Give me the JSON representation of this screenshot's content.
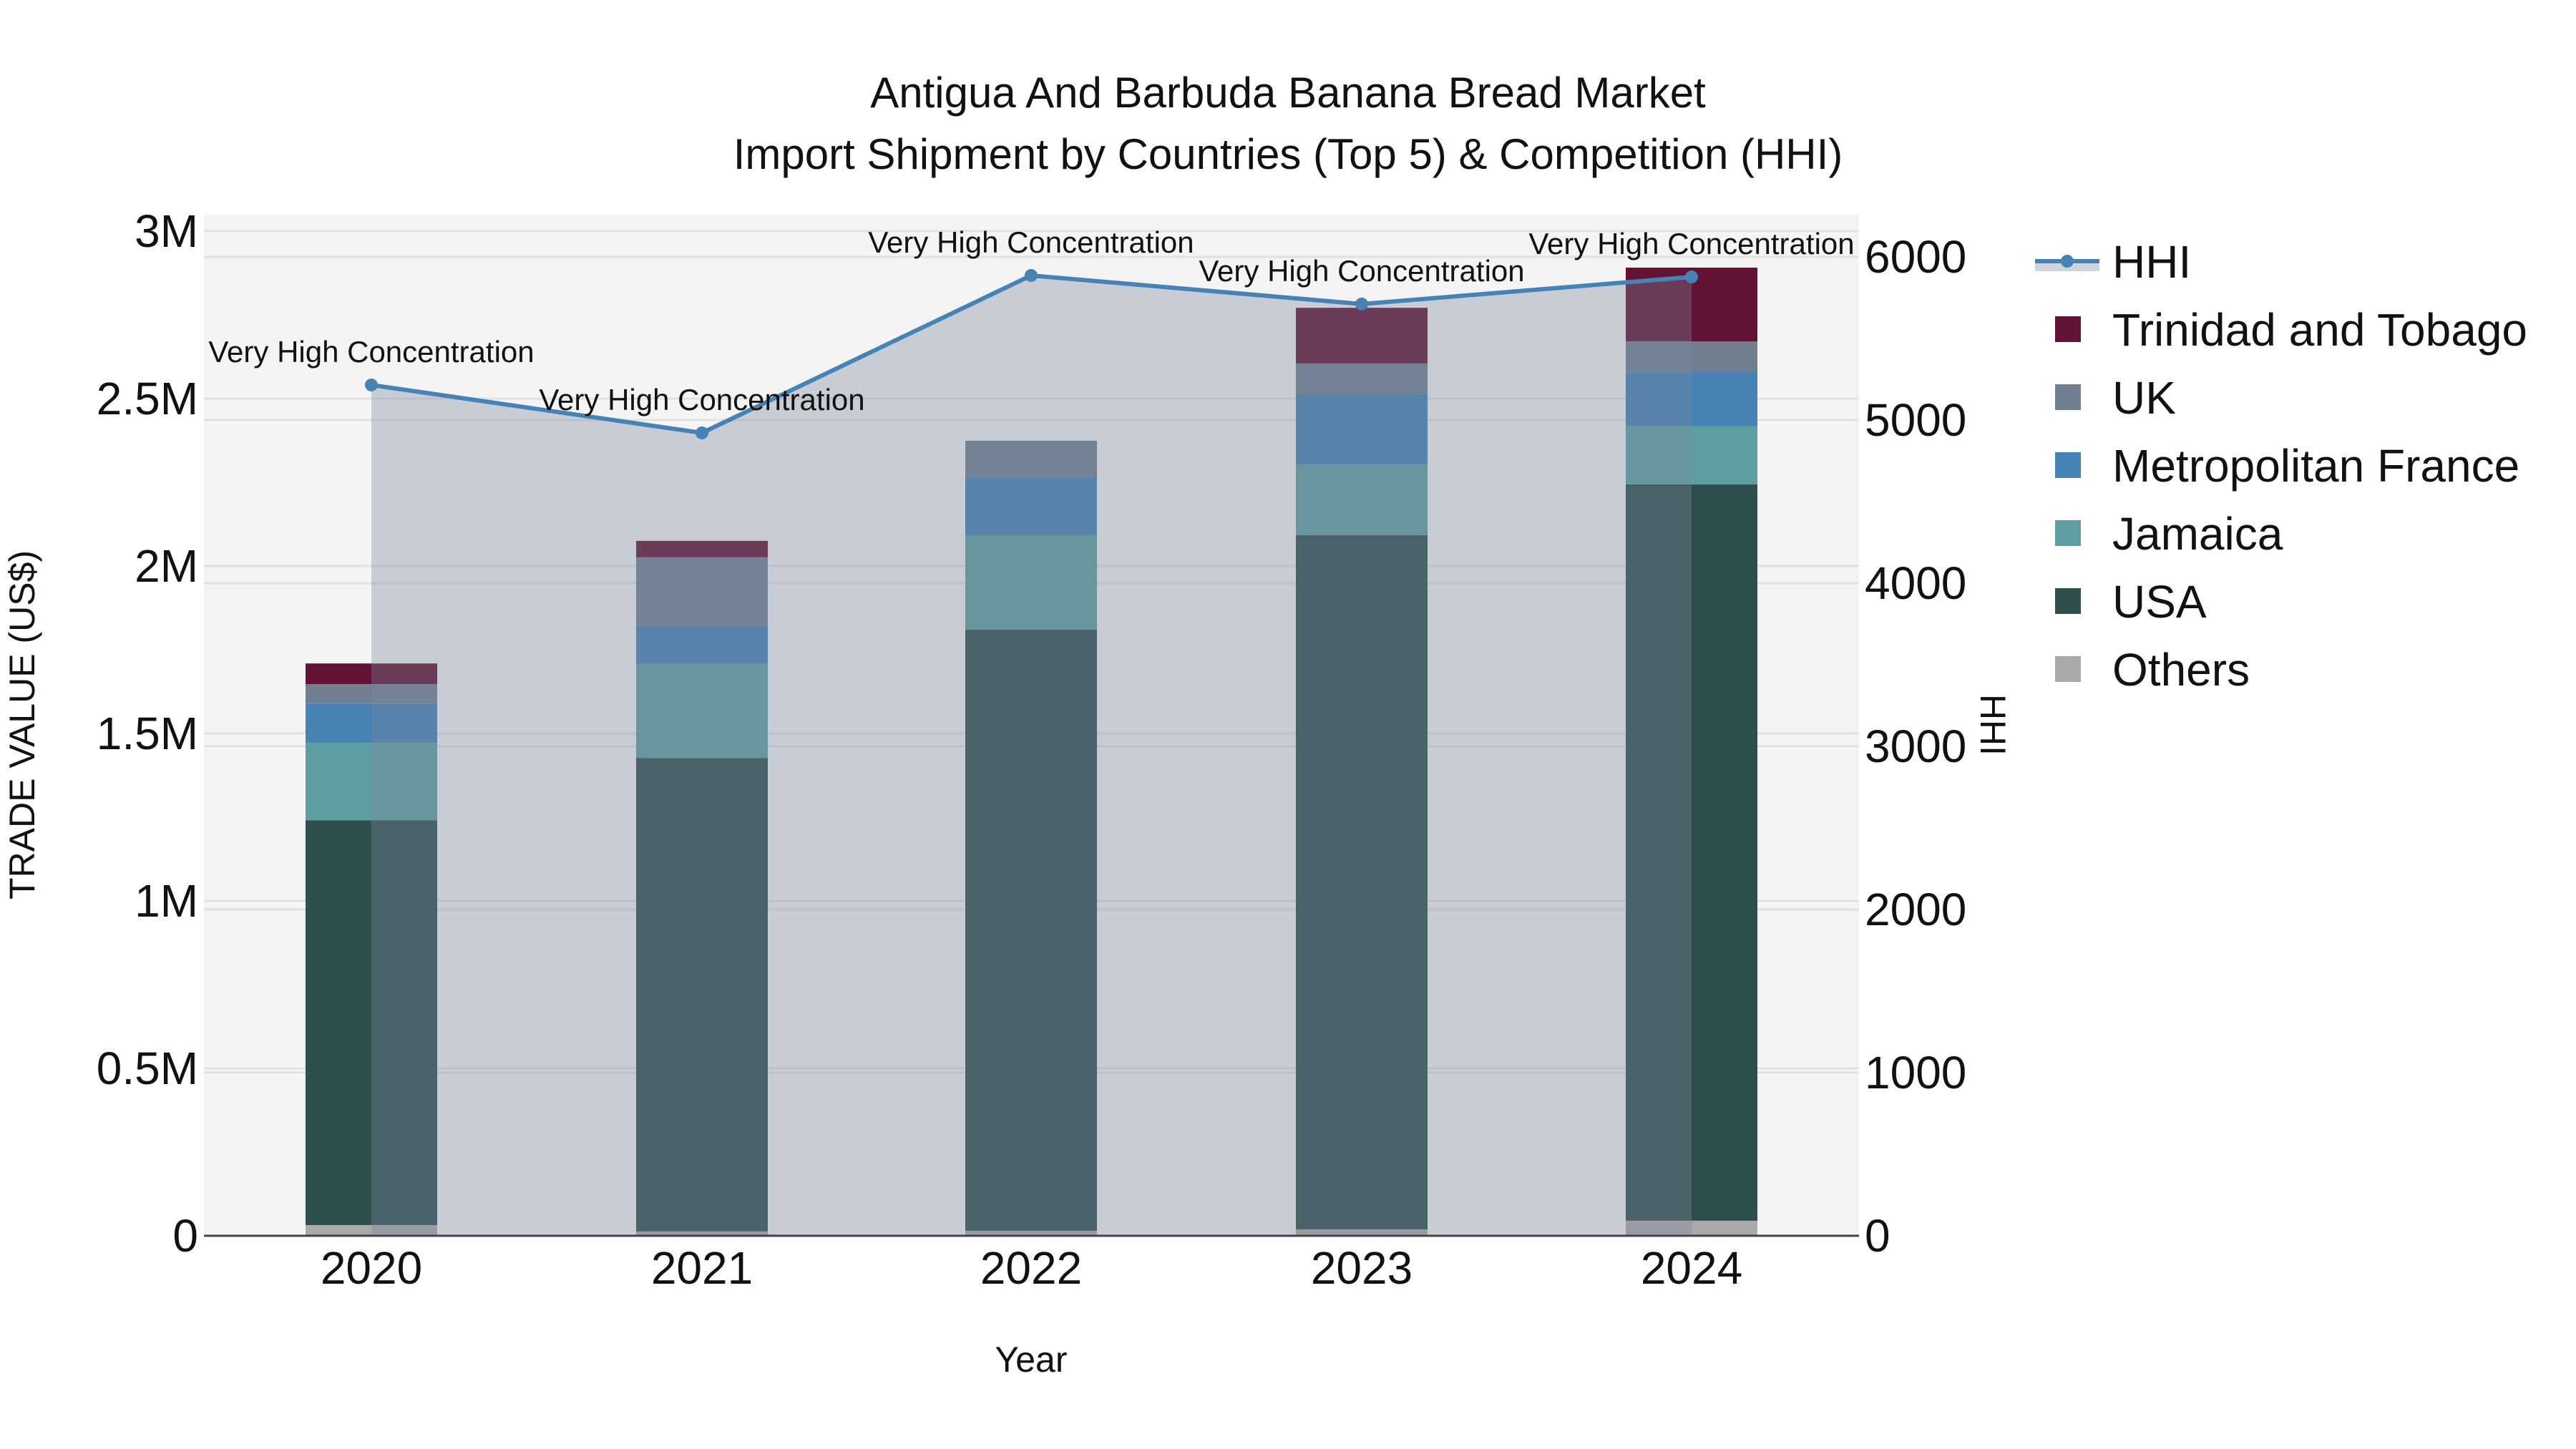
{
  "chart_data": {
    "type": "bar",
    "subtype": "stacked bar with line/area overlay (dual y-axis)",
    "title": "Antigua And Barbuda Banana Bread Market",
    "subtitle": "Import Shipment by Countries (Top 5) & Competition (HHI)",
    "xlabel": "Year",
    "ylabel": "TRADE VALUE (US$)",
    "y2label": "HHI",
    "categories": [
      "2020",
      "2021",
      "2022",
      "2023",
      "2024"
    ],
    "ylim": [
      0,
      3000000
    ],
    "y2lim": [
      0,
      6000
    ],
    "yticks": [
      {
        "value": 0,
        "label": "0"
      },
      {
        "value": 500000,
        "label": "0.5M"
      },
      {
        "value": 1000000,
        "label": "1M"
      },
      {
        "value": 1500000,
        "label": "1.5M"
      },
      {
        "value": 2000000,
        "label": "2M"
      },
      {
        "value": 2500000,
        "label": "2.5M"
      },
      {
        "value": 3000000,
        "label": "3M"
      }
    ],
    "y2ticks": [
      {
        "value": 0,
        "label": "0"
      },
      {
        "value": 1000,
        "label": "1000"
      },
      {
        "value": 2000,
        "label": "2000"
      },
      {
        "value": 3000,
        "label": "3000"
      },
      {
        "value": 4000,
        "label": "4000"
      },
      {
        "value": 5000,
        "label": "5000"
      },
      {
        "value": 6000,
        "label": "6000"
      }
    ],
    "grid": true,
    "legend_position": "right",
    "series": [
      {
        "name": "Others",
        "color": "#a9a9a9",
        "values": [
          32000,
          13000,
          15000,
          19000,
          45000
        ]
      },
      {
        "name": "USA",
        "color": "#2f4f4f",
        "values": [
          1209000,
          1414000,
          1795000,
          2073000,
          2199000
        ]
      },
      {
        "name": "Jamaica",
        "color": "#5f9ea0",
        "values": [
          231000,
          281000,
          282000,
          211000,
          173000
        ]
      },
      {
        "name": "Metropolitan France",
        "color": "#4682b4",
        "values": [
          116000,
          113000,
          173000,
          210000,
          162000
        ]
      },
      {
        "name": "UK",
        "color": "#708090",
        "values": [
          59000,
          205000,
          109000,
          92000,
          92000
        ]
      },
      {
        "name": "Trinidad and Tobago",
        "color": "#611235",
        "values": [
          62000,
          49000,
          0,
          166000,
          220000
        ]
      }
    ],
    "line_series": {
      "name": "HHI",
      "axis": "y2",
      "color": "#4682b4",
      "fill_color": "rgba(122,136,158,0.36)",
      "values": [
        5215,
        4921,
        5886,
        5711,
        5877
      ],
      "annotations": [
        "Very High Concentration",
        "Very High Concentration",
        "Very High Concentration",
        "Very High Concentration",
        "Very High Concentration"
      ]
    },
    "legend": [
      {
        "name": "HHI",
        "kind": "line",
        "color": "#4682b4"
      },
      {
        "name": "Trinidad and Tobago",
        "kind": "box",
        "color": "#611235"
      },
      {
        "name": "UK",
        "kind": "box",
        "color": "#708090"
      },
      {
        "name": "Metropolitan France",
        "kind": "box",
        "color": "#4682b4"
      },
      {
        "name": "Jamaica",
        "kind": "box",
        "color": "#5f9ea0"
      },
      {
        "name": "USA",
        "kind": "box",
        "color": "#2f4f4f"
      },
      {
        "name": "Others",
        "kind": "box",
        "color": "#a9a9a9"
      }
    ]
  },
  "colors": {
    "plot_bg": "#f4f4f4",
    "page_bg": "#ffffff",
    "grid": "#e2e2e2",
    "axis_line": "#444444"
  }
}
